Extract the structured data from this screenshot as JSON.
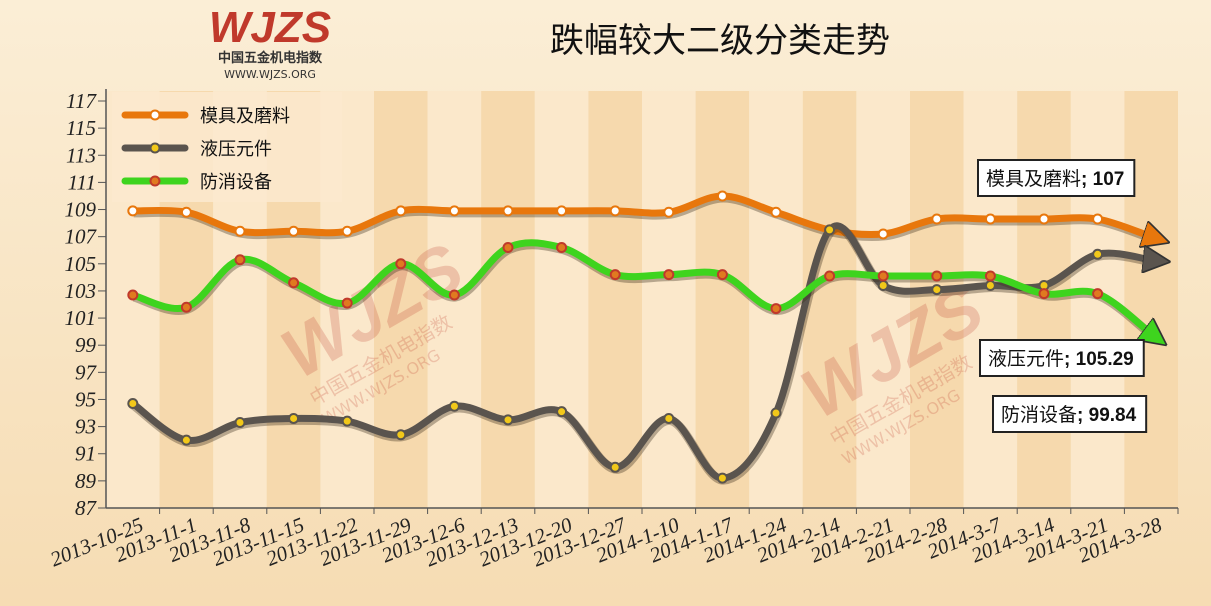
{
  "chart_data": {
    "type": "line",
    "title": "跌幅较大二级分类走势",
    "categories": [
      "2013-10-25",
      "2013-11-1",
      "2013-11-8",
      "2013-11-15",
      "2013-11-22",
      "2013-11-29",
      "2013-12-6",
      "2013-12-13",
      "2013-12-20",
      "2013-12-27",
      "2014-1-10",
      "2014-1-17",
      "2014-1-24",
      "2014-2-14",
      "2014-2-21",
      "2014-2-28",
      "2014-3-7",
      "2014-3-14",
      "2014-3-21",
      "2014-3-28"
    ],
    "ylim": [
      87,
      117
    ],
    "yticks": [
      87,
      89,
      91,
      93,
      95,
      97,
      99,
      101,
      103,
      105,
      107,
      109,
      111,
      113,
      115,
      117
    ],
    "series": [
      {
        "name": "模具及磨料",
        "color": "#e8770c",
        "marker_color": "#ffffff",
        "values": [
          108.9,
          108.8,
          107.4,
          107.4,
          107.4,
          108.9,
          108.9,
          108.9,
          108.9,
          108.9,
          108.8,
          110.0,
          108.8,
          107.5,
          107.2,
          108.3,
          108.3,
          108.3,
          108.3,
          107
        ]
      },
      {
        "name": "液压元件",
        "color": "#5a544e",
        "marker_color": "#f2c81a",
        "values": [
          94.7,
          92.0,
          93.3,
          93.6,
          93.4,
          92.4,
          94.5,
          93.5,
          94.1,
          90.0,
          93.6,
          89.2,
          94.0,
          107.5,
          103.4,
          103.1,
          103.4,
          103.4,
          105.7,
          105.29
        ]
      },
      {
        "name": "防消设备",
        "color": "#3ed41e",
        "marker_color": "#e07a20",
        "values": [
          102.7,
          101.8,
          105.3,
          103.6,
          102.1,
          105.0,
          102.7,
          106.2,
          106.2,
          104.2,
          104.2,
          104.2,
          101.7,
          104.1,
          104.1,
          104.1,
          104.1,
          102.8,
          102.8,
          99.84
        ]
      }
    ],
    "end_label_separator": "; ",
    "logo": {
      "mark": "WJZS",
      "name": "中国五金机电指数",
      "url": "WWW.WJZS.ORG"
    }
  }
}
